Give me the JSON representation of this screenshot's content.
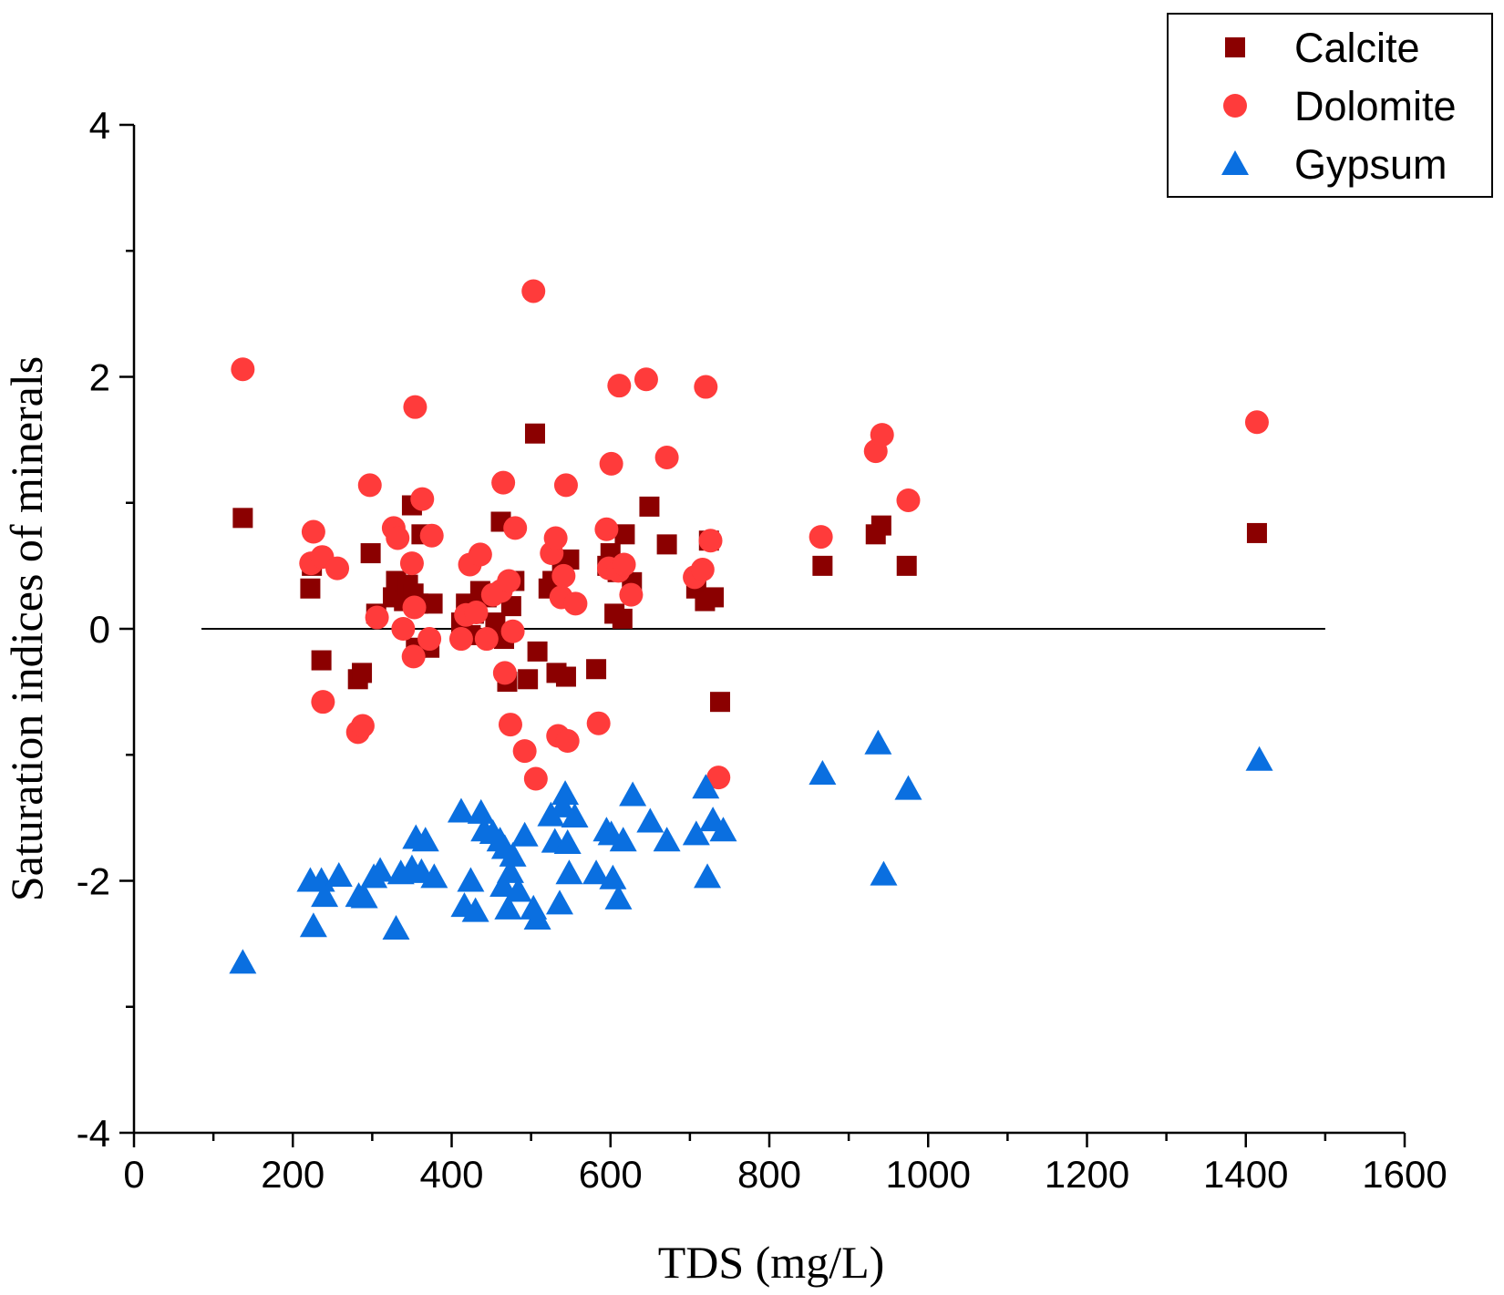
{
  "chart_data": {
    "type": "scatter",
    "title": "",
    "xlabel": "TDS (mg/L)",
    "ylabel": "Saturation indices of minerals",
    "xlim": [
      0,
      1600
    ],
    "ylim": [
      -4,
      4
    ],
    "xticks": [
      0,
      200,
      400,
      600,
      800,
      1000,
      1200,
      1400,
      1600
    ],
    "xtick_labels": [
      "0",
      "200",
      "400",
      "600",
      "800",
      "1000",
      "1200",
      "1400",
      "1600"
    ],
    "yticks": [
      -4,
      -2,
      0,
      2,
      4
    ],
    "ytick_labels": [
      "-4",
      "-2",
      "0",
      "2",
      "4"
    ],
    "grid": false,
    "legend_position": "top-right",
    "reference_line": {
      "y": 0,
      "x_from": 85,
      "x_to": 1500
    },
    "series": [
      {
        "name": "Calcite",
        "marker": "square",
        "color": "#8b0000",
        "points": [
          [
            137,
            0.88
          ],
          [
            222,
            0.32
          ],
          [
            224,
            0.5
          ],
          [
            236,
            -0.25
          ],
          [
            282,
            -0.4
          ],
          [
            287,
            -0.35
          ],
          [
            298,
            0.6
          ],
          [
            305,
            0.12
          ],
          [
            326,
            0.25
          ],
          [
            330,
            0.38
          ],
          [
            335,
            0.3
          ],
          [
            340,
            0.22
          ],
          [
            345,
            0.35
          ],
          [
            350,
            0.98
          ],
          [
            352,
            0.28
          ],
          [
            355,
            -0.15
          ],
          [
            358,
            0.2
          ],
          [
            362,
            0.75
          ],
          [
            372,
            -0.15
          ],
          [
            376,
            0.2
          ],
          [
            412,
            0.05
          ],
          [
            418,
            0.2
          ],
          [
            424,
            -0.05
          ],
          [
            428,
            0.12
          ],
          [
            436,
            0.3
          ],
          [
            444,
            0.25
          ],
          [
            455,
            0.05
          ],
          [
            462,
            0.85
          ],
          [
            466,
            -0.08
          ],
          [
            470,
            -0.42
          ],
          [
            475,
            0.18
          ],
          [
            479,
            0.38
          ],
          [
            496,
            -0.4
          ],
          [
            505,
            1.55
          ],
          [
            508,
            -0.18
          ],
          [
            522,
            0.32
          ],
          [
            527,
            0.38
          ],
          [
            532,
            -0.35
          ],
          [
            539,
            0.48
          ],
          [
            544,
            -0.38
          ],
          [
            548,
            0.55
          ],
          [
            582,
            -0.32
          ],
          [
            596,
            0.5
          ],
          [
            600,
            0.6
          ],
          [
            605,
            0.12
          ],
          [
            609,
            0.45
          ],
          [
            615,
            0.08
          ],
          [
            618,
            0.75
          ],
          [
            627,
            0.37
          ],
          [
            649,
            0.97
          ],
          [
            671,
            0.67
          ],
          [
            708,
            0.32
          ],
          [
            719,
            0.22
          ],
          [
            724,
            0.7
          ],
          [
            730,
            0.25
          ],
          [
            738,
            -0.58
          ],
          [
            867,
            0.5
          ],
          [
            934,
            0.75
          ],
          [
            941,
            0.82
          ],
          [
            973,
            0.5
          ],
          [
            1414,
            0.76
          ]
        ]
      },
      {
        "name": "Dolomite",
        "marker": "circle",
        "color": "#ff3b3b",
        "points": [
          [
            137,
            2.06
          ],
          [
            223,
            0.52
          ],
          [
            226,
            0.77
          ],
          [
            237,
            0.57
          ],
          [
            238,
            -0.58
          ],
          [
            256,
            0.48
          ],
          [
            282,
            -0.82
          ],
          [
            288,
            -0.77
          ],
          [
            297,
            1.14
          ],
          [
            306,
            0.09
          ],
          [
            327,
            0.8
          ],
          [
            332,
            0.72
          ],
          [
            339,
            0.0
          ],
          [
            350,
            0.52
          ],
          [
            352,
            -0.22
          ],
          [
            353,
            0.17
          ],
          [
            354,
            1.76
          ],
          [
            363,
            1.03
          ],
          [
            372,
            -0.08
          ],
          [
            375,
            0.74
          ],
          [
            412,
            -0.08
          ],
          [
            418,
            0.11
          ],
          [
            423,
            0.51
          ],
          [
            431,
            0.13
          ],
          [
            436,
            0.59
          ],
          [
            444,
            -0.08
          ],
          [
            452,
            0.27
          ],
          [
            462,
            0.3
          ],
          [
            465,
            1.16
          ],
          [
            467,
            -0.35
          ],
          [
            472,
            0.38
          ],
          [
            474,
            -0.76
          ],
          [
            477,
            -0.02
          ],
          [
            480,
            0.8
          ],
          [
            492,
            -0.97
          ],
          [
            503,
            2.68
          ],
          [
            506,
            -1.19
          ],
          [
            526,
            0.6
          ],
          [
            531,
            0.72
          ],
          [
            534,
            -0.85
          ],
          [
            538,
            0.25
          ],
          [
            541,
            0.42
          ],
          [
            544,
            1.14
          ],
          [
            546,
            -0.89
          ],
          [
            556,
            0.2
          ],
          [
            585,
            -0.75
          ],
          [
            595,
            0.79
          ],
          [
            598,
            0.48
          ],
          [
            601,
            1.31
          ],
          [
            610,
            0.46
          ],
          [
            611,
            1.93
          ],
          [
            617,
            0.51
          ],
          [
            626,
            0.27
          ],
          [
            645,
            1.98
          ],
          [
            671,
            1.36
          ],
          [
            706,
            0.41
          ],
          [
            716,
            0.47
          ],
          [
            720,
            1.92
          ],
          [
            726,
            0.7
          ],
          [
            736,
            -1.18
          ],
          [
            865,
            0.73
          ],
          [
            934,
            1.41
          ],
          [
            942,
            1.54
          ],
          [
            975,
            1.02
          ],
          [
            1414,
            1.64
          ]
        ]
      },
      {
        "name": "Gypsum",
        "marker": "triangle",
        "color": "#0a6fe0",
        "points": [
          [
            137,
            -2.65
          ],
          [
            222,
            -2.0
          ],
          [
            226,
            -2.36
          ],
          [
            236,
            -2.0
          ],
          [
            240,
            -2.12
          ],
          [
            258,
            -1.96
          ],
          [
            283,
            -2.12
          ],
          [
            290,
            -2.13
          ],
          [
            302,
            -1.97
          ],
          [
            310,
            -1.92
          ],
          [
            330,
            -2.38
          ],
          [
            336,
            -1.94
          ],
          [
            350,
            -1.9
          ],
          [
            355,
            -1.66
          ],
          [
            362,
            -1.93
          ],
          [
            367,
            -1.68
          ],
          [
            378,
            -1.97
          ],
          [
            412,
            -1.45
          ],
          [
            416,
            -2.2
          ],
          [
            424,
            -2.0
          ],
          [
            430,
            -2.24
          ],
          [
            437,
            -1.46
          ],
          [
            441,
            -1.6
          ],
          [
            452,
            -1.62
          ],
          [
            461,
            -1.68
          ],
          [
            465,
            -2.04
          ],
          [
            467,
            -1.74
          ],
          [
            471,
            -2.22
          ],
          [
            474,
            -1.93
          ],
          [
            477,
            -1.8
          ],
          [
            484,
            -2.08
          ],
          [
            492,
            -1.64
          ],
          [
            503,
            -2.22
          ],
          [
            508,
            -2.3
          ],
          [
            525,
            -1.48
          ],
          [
            530,
            -1.69
          ],
          [
            536,
            -2.18
          ],
          [
            540,
            -1.41
          ],
          [
            543,
            -1.31
          ],
          [
            546,
            -1.7
          ],
          [
            548,
            -1.94
          ],
          [
            555,
            -1.49
          ],
          [
            582,
            -1.94
          ],
          [
            595,
            -1.6
          ],
          [
            601,
            -1.63
          ],
          [
            603,
            -1.98
          ],
          [
            610,
            -2.14
          ],
          [
            616,
            -1.68
          ],
          [
            628,
            -1.32
          ],
          [
            650,
            -1.53
          ],
          [
            671,
            -1.68
          ],
          [
            708,
            -1.63
          ],
          [
            720,
            -1.26
          ],
          [
            722,
            -1.97
          ],
          [
            729,
            -1.52
          ],
          [
            742,
            -1.6
          ],
          [
            867,
            -1.15
          ],
          [
            937,
            -0.91
          ],
          [
            944,
            -1.95
          ],
          [
            975,
            -1.27
          ],
          [
            1417,
            -1.04
          ]
        ]
      }
    ]
  }
}
